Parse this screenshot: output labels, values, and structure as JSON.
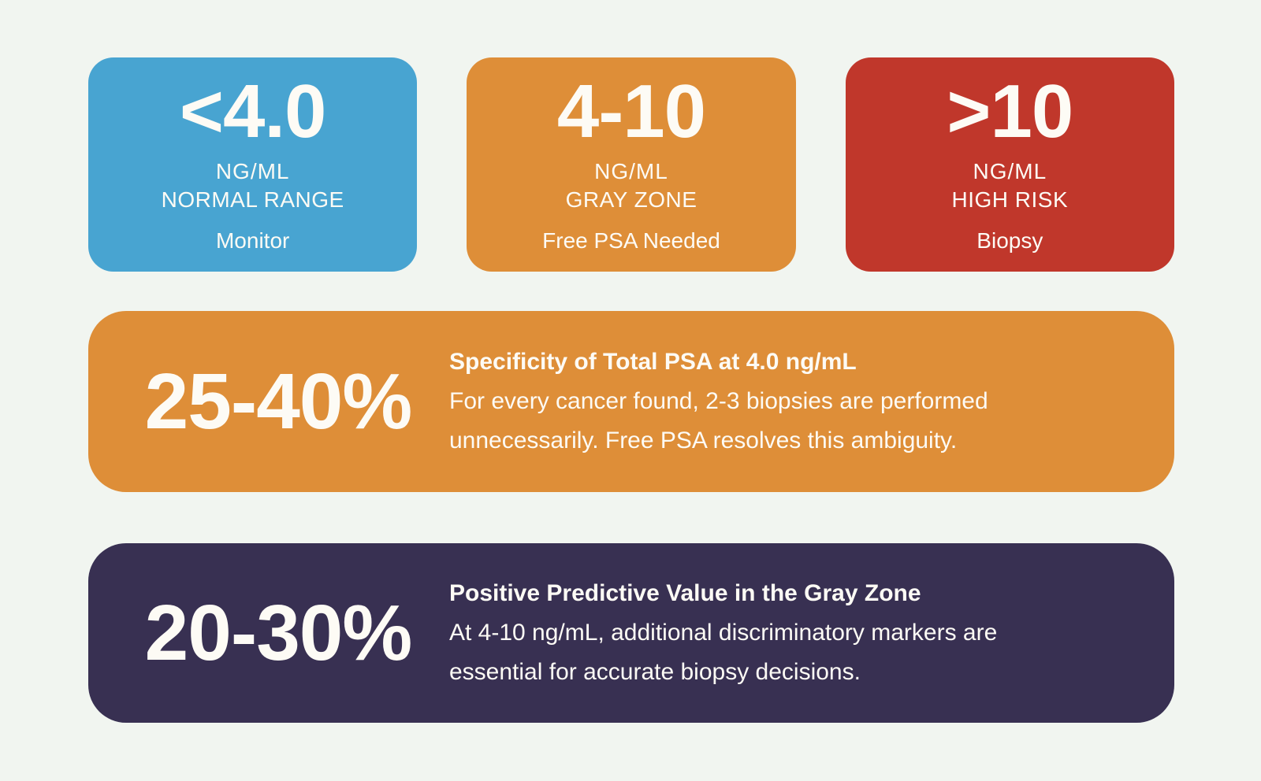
{
  "colors": {
    "background": "#F1F5F0",
    "blue": "#48A4D1",
    "orange": "#DE8E38",
    "red": "#C0372B",
    "purple": "#383052",
    "text_light": "#FDFBF5"
  },
  "cards": [
    {
      "value": "<4.0",
      "unit": "NG/ML",
      "range_label": "NORMAL RANGE",
      "action": "Monitor"
    },
    {
      "value": "4-10",
      "unit": "NG/ML",
      "range_label": "GRAY ZONE",
      "action": "Free PSA Needed"
    },
    {
      "value": ">10",
      "unit": "NG/ML",
      "range_label": "HIGH RISK",
      "action": "Biopsy"
    }
  ],
  "banners": [
    {
      "stat": "25-40%",
      "heading": "Specificity of Total PSA at 4.0 ng/mL",
      "body_lines": [
        "For every cancer found, 2-3 biopsies are performed",
        "unnecessarily. Free PSA resolves this ambiguity."
      ]
    },
    {
      "stat": "20-30%",
      "heading": "Positive Predictive Value in the Gray Zone",
      "body_lines": [
        "At 4-10 ng/mL, additional discriminatory markers are",
        "essential for accurate biopsy decisions."
      ]
    }
  ]
}
